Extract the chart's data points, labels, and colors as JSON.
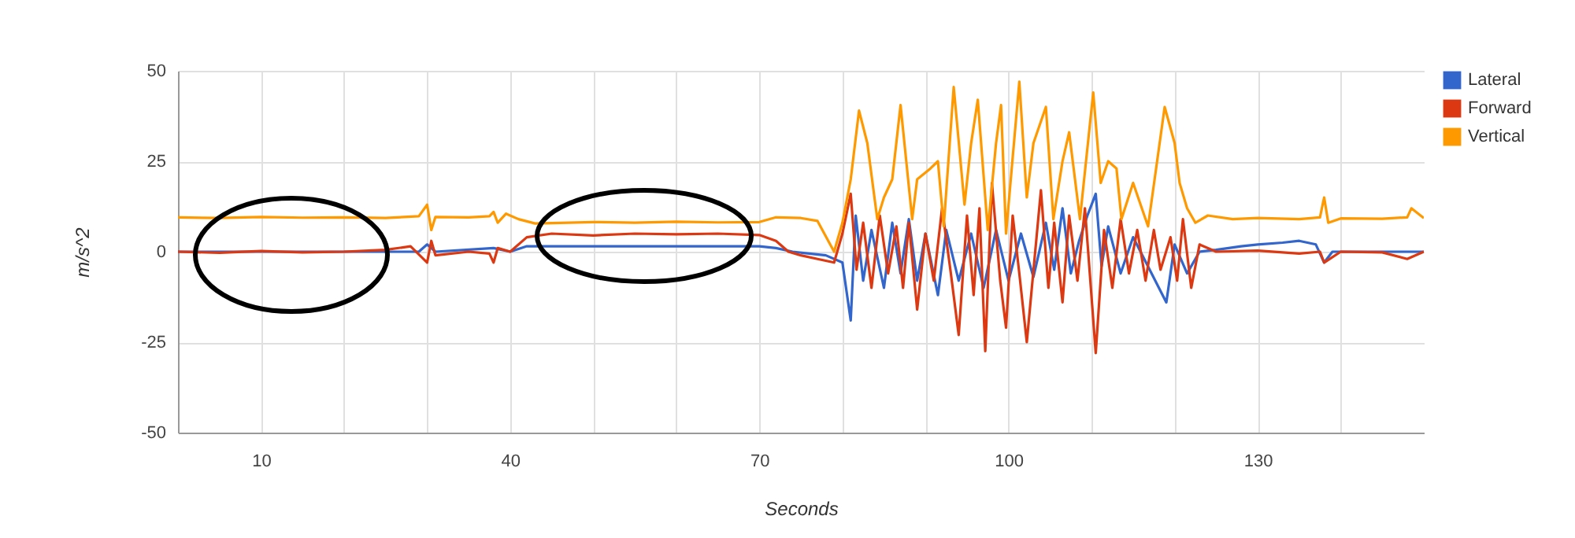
{
  "chart_data": {
    "type": "line",
    "xlabel": "Seconds",
    "ylabel": "m/s^2",
    "legend": "top right",
    "grid": true,
    "xlim": [
      0,
      150
    ],
    "xticks": [
      10,
      {
        "value": 20,
        "label": null
      },
      {
        "value": 30,
        "label": null
      },
      40,
      {
        "value": 50,
        "label": null
      },
      {
        "value": 60,
        "label": null
      },
      70,
      {
        "value": 80,
        "label": null
      },
      {
        "value": 90,
        "label": null
      },
      100,
      {
        "value": 110,
        "label": null
      },
      {
        "value": 120,
        "label": null
      },
      130,
      {
        "value": 140,
        "label": null
      }
    ],
    "ylim": [
      -50,
      50
    ],
    "yticks": [
      -50,
      -25,
      0,
      25,
      50
    ],
    "series": [
      {
        "name": "Lateral",
        "color": "#3366cc",
        "x": [
          0,
          10,
          20,
          29,
          30,
          31,
          38,
          40,
          42,
          50,
          60,
          70,
          72,
          74,
          78,
          80,
          81,
          81.6,
          82.5,
          83.5,
          85,
          86,
          87,
          88,
          89,
          90,
          91.5,
          92.5,
          94,
          95.5,
          97,
          98.5,
          100,
          101.5,
          103,
          104.5,
          105.5,
          106.5,
          107.5,
          108.5,
          109.5,
          110.5,
          111.2,
          112,
          113.5,
          115,
          117,
          119,
          120,
          121.5,
          123,
          125,
          128,
          130,
          133,
          135,
          137,
          138,
          139,
          145,
          150
        ],
        "values": [
          0,
          0,
          0,
          0,
          2,
          0,
          1,
          0,
          1.5,
          1.5,
          1.5,
          1.5,
          1,
          0,
          -1,
          -3,
          -19,
          10,
          -8,
          6,
          -10,
          8,
          -6,
          9,
          -8,
          5,
          -12,
          6,
          -8,
          5,
          -10,
          6,
          -8,
          5,
          -7,
          8,
          -5,
          12,
          -6,
          3,
          10,
          16,
          -4,
          7,
          -6,
          4,
          -5,
          -14,
          2,
          -6,
          0,
          0.5,
          1.5,
          2,
          2.5,
          3,
          2,
          -3,
          0,
          0,
          0
        ]
      },
      {
        "name": "Forward",
        "color": "#dc3912",
        "x": [
          0,
          5,
          10,
          15,
          20,
          25,
          28,
          30,
          30.5,
          31,
          35,
          37.5,
          38,
          38.5,
          40,
          42,
          45,
          50,
          55,
          60,
          65,
          70,
          72,
          73.5,
          75,
          77,
          79,
          80,
          81,
          81.7,
          82.5,
          83.5,
          84.5,
          85.5,
          86.5,
          87.3,
          88,
          89,
          90,
          91,
          92,
          93,
          94,
          95,
          95.8,
          96.5,
          97.2,
          98,
          99,
          99.7,
          100.5,
          101.3,
          102.2,
          103.9,
          104.8,
          105.5,
          106.5,
          107.3,
          108.3,
          109.2,
          110.5,
          111.5,
          112.5,
          113.5,
          114.5,
          115.5,
          116.5,
          117.5,
          118.3,
          119.5,
          120.3,
          121,
          122,
          123,
          125,
          130,
          135,
          137.5,
          138,
          140,
          145,
          148,
          150
        ],
        "values": [
          0,
          -0.3,
          0.2,
          -0.2,
          0,
          0.5,
          1.5,
          -3,
          3,
          -1,
          0,
          -0.5,
          -3,
          1,
          0,
          4,
          5,
          4.5,
          5,
          4.8,
          5,
          4.6,
          3,
          0,
          -1,
          -2,
          -3,
          5,
          16,
          -5,
          8,
          -10,
          10,
          -6,
          7,
          -10,
          8,
          -16,
          5,
          -8,
          12,
          -5,
          -23,
          10,
          -12,
          12,
          -27.5,
          19,
          -8,
          -21,
          10,
          -6,
          -25,
          17,
          -10,
          8,
          -14,
          10,
          -8,
          12,
          -28,
          6,
          -10,
          9,
          -6,
          6,
          -8,
          6,
          -5,
          4,
          -8,
          9,
          -10,
          2,
          0,
          0.3,
          -0.5,
          0,
          -3,
          0,
          -0.2,
          -2,
          0
        ]
      },
      {
        "name": "Vertical",
        "color": "#ff9900",
        "x": [
          0,
          5,
          10,
          15,
          20,
          25,
          29,
          30,
          30.5,
          31,
          35,
          37.5,
          38,
          38.5,
          39.5,
          41,
          43,
          50,
          55,
          60,
          65,
          70,
          72,
          75,
          77,
          79,
          80,
          81,
          82,
          83,
          84.2,
          85,
          86,
          87,
          88.4,
          89,
          90.6,
          91.5,
          92.2,
          93.4,
          94.7,
          95.5,
          96.3,
          97.5,
          98.5,
          99.1,
          99.7,
          101.3,
          102.2,
          103,
          104.5,
          105.4,
          106.5,
          107.3,
          108.6,
          110.2,
          111.1,
          112,
          113,
          113.6,
          115,
          116.8,
          118.8,
          120,
          120.6,
          121.5,
          122.5,
          124,
          127,
          130,
          135,
          137.5,
          138,
          138.5,
          140,
          145,
          148,
          148.5,
          150
        ],
        "values": [
          9.5,
          9.3,
          9.6,
          9.4,
          9.5,
          9.3,
          9.8,
          13,
          6,
          9.6,
          9.5,
          9.8,
          11,
          8,
          10.5,
          9,
          7.8,
          8.2,
          8,
          8.3,
          8.1,
          8.2,
          9.5,
          9.3,
          8.5,
          0,
          8,
          20,
          39,
          30,
          9,
          15,
          20,
          40.5,
          9,
          20,
          23,
          25,
          7,
          45.5,
          13,
          30,
          42,
          6,
          30,
          40.5,
          5,
          47,
          15,
          30,
          40,
          9,
          25,
          33,
          9,
          44,
          19,
          25,
          23,
          9,
          19,
          7,
          40,
          30,
          19,
          12,
          8,
          10,
          9,
          9.3,
          9,
          9.5,
          15,
          8,
          9.2,
          9.1,
          9.5,
          12,
          9.3
        ]
      }
    ]
  }
}
